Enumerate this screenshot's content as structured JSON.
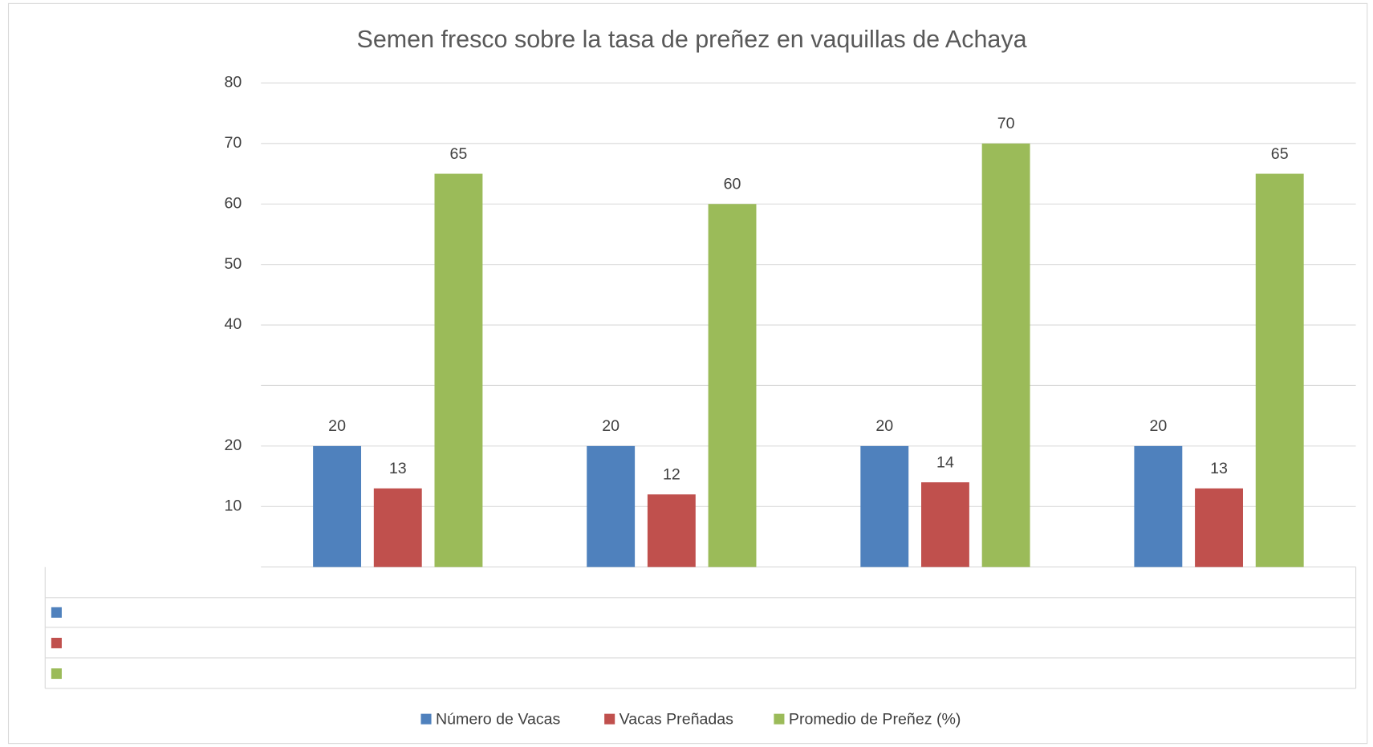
{
  "chart_data": {
    "type": "bar",
    "title": "Semen fresco sobre la tasa de preñez en vaquillas de Achaya",
    "categories": [
      null,
      null,
      null,
      null
    ],
    "series": [
      {
        "name": "Número de Vacas",
        "color": "#4f81bd",
        "values": [
          20,
          20,
          20,
          20
        ]
      },
      {
        "name": "Vacas Preñadas",
        "color": "#c0504d",
        "values": [
          13,
          12,
          14,
          13
        ]
      },
      {
        "name": "Promedio de Preñez (%)",
        "color": "#9bbb59",
        "values": [
          65,
          60,
          70,
          65
        ]
      }
    ],
    "ylim": [
      0,
      80
    ],
    "yticks": [
      10,
      20,
      {
        "value": 30,
        "label": null
      },
      40,
      50,
      60,
      70,
      80
    ],
    "grid": true,
    "legend": "bottom"
  }
}
